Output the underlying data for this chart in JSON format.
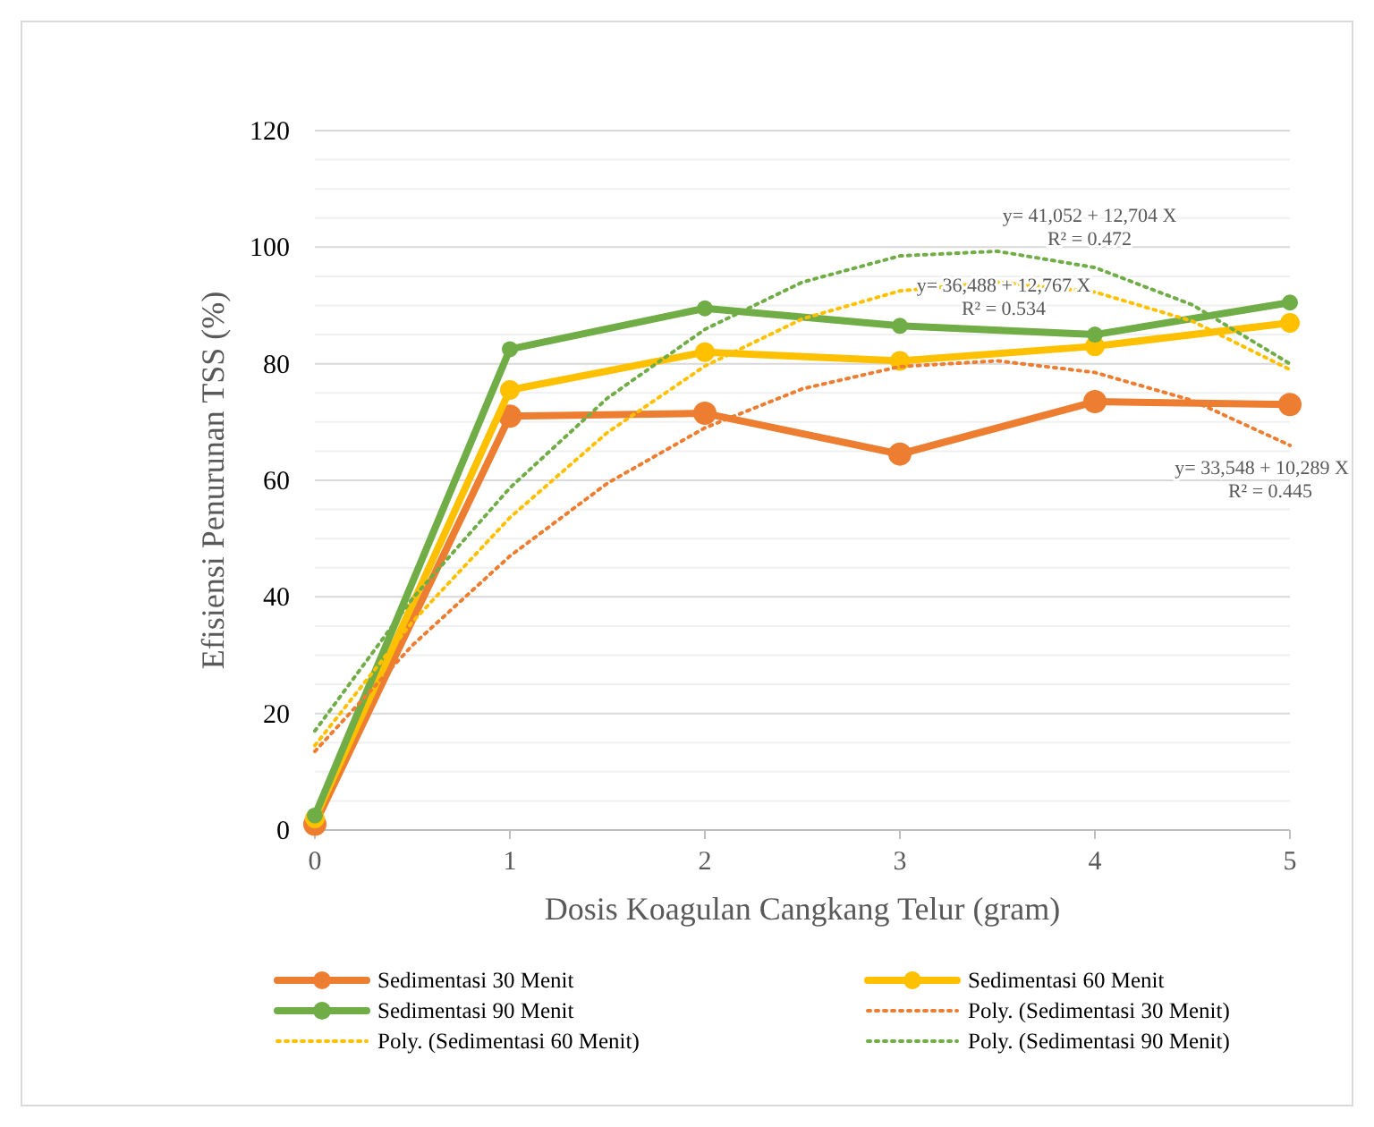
{
  "chart_data": {
    "type": "line",
    "xlabel": "Dosis Koagulan Cangkang  Telur (gram)",
    "ylabel": "Efisiensi Penurunan TSS (%)",
    "x": [
      0,
      1,
      2,
      3,
      4,
      5
    ],
    "xlim": [
      0,
      5
    ],
    "xticks": [
      0,
      1,
      2,
      3,
      4,
      5
    ],
    "ylim": [
      0,
      120
    ],
    "yticks": [
      0,
      {
        "value": 5,
        "label": null
      },
      {
        "value": 10,
        "label": null
      },
      {
        "value": 15,
        "label": null
      },
      20,
      {
        "value": 25,
        "label": null
      },
      {
        "value": 30,
        "label": null
      },
      {
        "value": 35,
        "label": null
      },
      40,
      {
        "value": 45,
        "label": null
      },
      {
        "value": 50,
        "label": null
      },
      {
        "value": 55,
        "label": null
      },
      60,
      {
        "value": 65,
        "label": null
      },
      {
        "value": 70,
        "label": null
      },
      {
        "value": 75,
        "label": null
      },
      80,
      {
        "value": 85,
        "label": null
      },
      {
        "value": 90,
        "label": null
      },
      {
        "value": 95,
        "label": null
      },
      100,
      {
        "value": 105,
        "label": null
      },
      {
        "value": 110,
        "label": null
      },
      {
        "value": 115,
        "label": null
      },
      120
    ],
    "grid": "y",
    "legend": "bottom",
    "marker": "circle",
    "line_style": "solid",
    "series": [
      {
        "name": "Sedimentasi 30 Menit",
        "color": "#ed7d31",
        "values": [
          1,
          71,
          71.5,
          64.5,
          73.5,
          73
        ]
      },
      {
        "name": "Sedimentasi 60 Menit",
        "color": "#ffc000",
        "values": [
          2,
          75.5,
          82,
          80.5,
          83,
          87
        ]
      },
      {
        "name": "Sedimentasi 90 Menit",
        "color": "#70ad47",
        "values": [
          2.5,
          82.5,
          89.5,
          86.5,
          85,
          90.5
        ]
      },
      {
        "name": "Poly. (Sedimentasi 30 Menit)",
        "color": "#ed7d31",
        "marker": "none",
        "line_style": "dotted",
        "x": [
          0,
          0.5,
          1,
          1.5,
          2,
          2.5,
          3,
          3.5,
          4,
          4.5,
          5
        ],
        "values": [
          13.5,
          31.7,
          47,
          59.5,
          69,
          75.7,
          79.5,
          80.5,
          78.5,
          73.7,
          66
        ]
      },
      {
        "name": "Poly. (Sedimentasi 60 Menit)",
        "color": "#ffc000",
        "marker": "none",
        "line_style": "dotted",
        "x": [
          0,
          0.5,
          1,
          1.5,
          2,
          2.5,
          3,
          3.5,
          4,
          4.5,
          5
        ],
        "values": [
          14.5,
          35.7,
          53.6,
          68.2,
          79.6,
          87.7,
          92.5,
          94,
          92.3,
          87.3,
          79
        ]
      },
      {
        "name": "Poly. (Sedimentasi 90 Menit)",
        "color": "#70ad47",
        "marker": "none",
        "line_style": "dotted",
        "x": [
          0,
          0.5,
          1,
          1.5,
          2,
          2.5,
          3,
          3.5,
          4,
          4.5,
          5
        ],
        "values": [
          17,
          39.7,
          58.7,
          74.1,
          85.9,
          94,
          98.5,
          99.3,
          96.5,
          90.1,
          80
        ]
      }
    ],
    "annotations": [
      "y= 41,052 + 12,704  X",
      "R² = 0.472",
      "y= 36,488 + 12,767  X",
      "R² = 0.534",
      "y= 33,548 + 10,289  X",
      "R² = 0.445"
    ]
  }
}
